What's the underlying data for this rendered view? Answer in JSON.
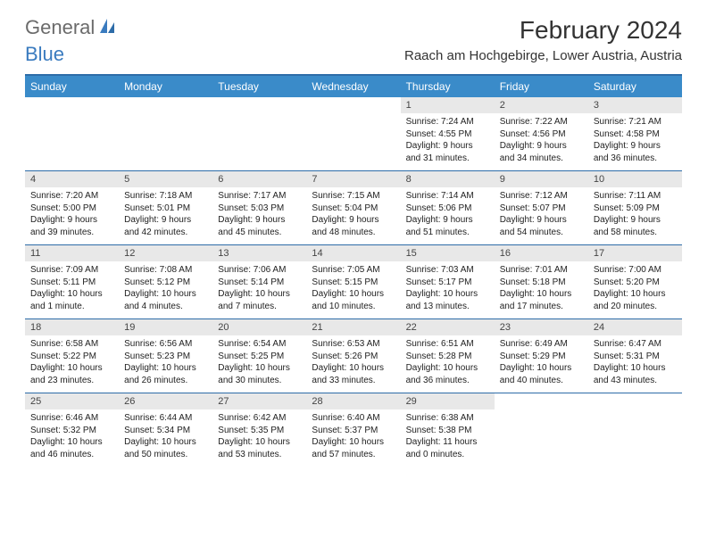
{
  "logo": {
    "general": "General",
    "blue": "Blue"
  },
  "title": "February 2024",
  "location": "Raach am Hochgebirge, Lower Austria, Austria",
  "colors": {
    "header_bg": "#3a8bc9",
    "header_border": "#2d6ca8",
    "daynum_bg": "#e8e8e8",
    "logo_gray": "#6b6b6b",
    "logo_blue": "#3a7bbf"
  },
  "day_headers": [
    "Sunday",
    "Monday",
    "Tuesday",
    "Wednesday",
    "Thursday",
    "Friday",
    "Saturday"
  ],
  "weeks": [
    [
      {
        "blank": true
      },
      {
        "blank": true
      },
      {
        "blank": true
      },
      {
        "blank": true
      },
      {
        "num": "1",
        "sunrise": "Sunrise: 7:24 AM",
        "sunset": "Sunset: 4:55 PM",
        "daylight1": "Daylight: 9 hours",
        "daylight2": "and 31 minutes."
      },
      {
        "num": "2",
        "sunrise": "Sunrise: 7:22 AM",
        "sunset": "Sunset: 4:56 PM",
        "daylight1": "Daylight: 9 hours",
        "daylight2": "and 34 minutes."
      },
      {
        "num": "3",
        "sunrise": "Sunrise: 7:21 AM",
        "sunset": "Sunset: 4:58 PM",
        "daylight1": "Daylight: 9 hours",
        "daylight2": "and 36 minutes."
      }
    ],
    [
      {
        "num": "4",
        "sunrise": "Sunrise: 7:20 AM",
        "sunset": "Sunset: 5:00 PM",
        "daylight1": "Daylight: 9 hours",
        "daylight2": "and 39 minutes."
      },
      {
        "num": "5",
        "sunrise": "Sunrise: 7:18 AM",
        "sunset": "Sunset: 5:01 PM",
        "daylight1": "Daylight: 9 hours",
        "daylight2": "and 42 minutes."
      },
      {
        "num": "6",
        "sunrise": "Sunrise: 7:17 AM",
        "sunset": "Sunset: 5:03 PM",
        "daylight1": "Daylight: 9 hours",
        "daylight2": "and 45 minutes."
      },
      {
        "num": "7",
        "sunrise": "Sunrise: 7:15 AM",
        "sunset": "Sunset: 5:04 PM",
        "daylight1": "Daylight: 9 hours",
        "daylight2": "and 48 minutes."
      },
      {
        "num": "8",
        "sunrise": "Sunrise: 7:14 AM",
        "sunset": "Sunset: 5:06 PM",
        "daylight1": "Daylight: 9 hours",
        "daylight2": "and 51 minutes."
      },
      {
        "num": "9",
        "sunrise": "Sunrise: 7:12 AM",
        "sunset": "Sunset: 5:07 PM",
        "daylight1": "Daylight: 9 hours",
        "daylight2": "and 54 minutes."
      },
      {
        "num": "10",
        "sunrise": "Sunrise: 7:11 AM",
        "sunset": "Sunset: 5:09 PM",
        "daylight1": "Daylight: 9 hours",
        "daylight2": "and 58 minutes."
      }
    ],
    [
      {
        "num": "11",
        "sunrise": "Sunrise: 7:09 AM",
        "sunset": "Sunset: 5:11 PM",
        "daylight1": "Daylight: 10 hours",
        "daylight2": "and 1 minute."
      },
      {
        "num": "12",
        "sunrise": "Sunrise: 7:08 AM",
        "sunset": "Sunset: 5:12 PM",
        "daylight1": "Daylight: 10 hours",
        "daylight2": "and 4 minutes."
      },
      {
        "num": "13",
        "sunrise": "Sunrise: 7:06 AM",
        "sunset": "Sunset: 5:14 PM",
        "daylight1": "Daylight: 10 hours",
        "daylight2": "and 7 minutes."
      },
      {
        "num": "14",
        "sunrise": "Sunrise: 7:05 AM",
        "sunset": "Sunset: 5:15 PM",
        "daylight1": "Daylight: 10 hours",
        "daylight2": "and 10 minutes."
      },
      {
        "num": "15",
        "sunrise": "Sunrise: 7:03 AM",
        "sunset": "Sunset: 5:17 PM",
        "daylight1": "Daylight: 10 hours",
        "daylight2": "and 13 minutes."
      },
      {
        "num": "16",
        "sunrise": "Sunrise: 7:01 AM",
        "sunset": "Sunset: 5:18 PM",
        "daylight1": "Daylight: 10 hours",
        "daylight2": "and 17 minutes."
      },
      {
        "num": "17",
        "sunrise": "Sunrise: 7:00 AM",
        "sunset": "Sunset: 5:20 PM",
        "daylight1": "Daylight: 10 hours",
        "daylight2": "and 20 minutes."
      }
    ],
    [
      {
        "num": "18",
        "sunrise": "Sunrise: 6:58 AM",
        "sunset": "Sunset: 5:22 PM",
        "daylight1": "Daylight: 10 hours",
        "daylight2": "and 23 minutes."
      },
      {
        "num": "19",
        "sunrise": "Sunrise: 6:56 AM",
        "sunset": "Sunset: 5:23 PM",
        "daylight1": "Daylight: 10 hours",
        "daylight2": "and 26 minutes."
      },
      {
        "num": "20",
        "sunrise": "Sunrise: 6:54 AM",
        "sunset": "Sunset: 5:25 PM",
        "daylight1": "Daylight: 10 hours",
        "daylight2": "and 30 minutes."
      },
      {
        "num": "21",
        "sunrise": "Sunrise: 6:53 AM",
        "sunset": "Sunset: 5:26 PM",
        "daylight1": "Daylight: 10 hours",
        "daylight2": "and 33 minutes."
      },
      {
        "num": "22",
        "sunrise": "Sunrise: 6:51 AM",
        "sunset": "Sunset: 5:28 PM",
        "daylight1": "Daylight: 10 hours",
        "daylight2": "and 36 minutes."
      },
      {
        "num": "23",
        "sunrise": "Sunrise: 6:49 AM",
        "sunset": "Sunset: 5:29 PM",
        "daylight1": "Daylight: 10 hours",
        "daylight2": "and 40 minutes."
      },
      {
        "num": "24",
        "sunrise": "Sunrise: 6:47 AM",
        "sunset": "Sunset: 5:31 PM",
        "daylight1": "Daylight: 10 hours",
        "daylight2": "and 43 minutes."
      }
    ],
    [
      {
        "num": "25",
        "sunrise": "Sunrise: 6:46 AM",
        "sunset": "Sunset: 5:32 PM",
        "daylight1": "Daylight: 10 hours",
        "daylight2": "and 46 minutes."
      },
      {
        "num": "26",
        "sunrise": "Sunrise: 6:44 AM",
        "sunset": "Sunset: 5:34 PM",
        "daylight1": "Daylight: 10 hours",
        "daylight2": "and 50 minutes."
      },
      {
        "num": "27",
        "sunrise": "Sunrise: 6:42 AM",
        "sunset": "Sunset: 5:35 PM",
        "daylight1": "Daylight: 10 hours",
        "daylight2": "and 53 minutes."
      },
      {
        "num": "28",
        "sunrise": "Sunrise: 6:40 AM",
        "sunset": "Sunset: 5:37 PM",
        "daylight1": "Daylight: 10 hours",
        "daylight2": "and 57 minutes."
      },
      {
        "num": "29",
        "sunrise": "Sunrise: 6:38 AM",
        "sunset": "Sunset: 5:38 PM",
        "daylight1": "Daylight: 11 hours",
        "daylight2": "and 0 minutes."
      },
      {
        "blank": true
      },
      {
        "blank": true
      }
    ]
  ]
}
